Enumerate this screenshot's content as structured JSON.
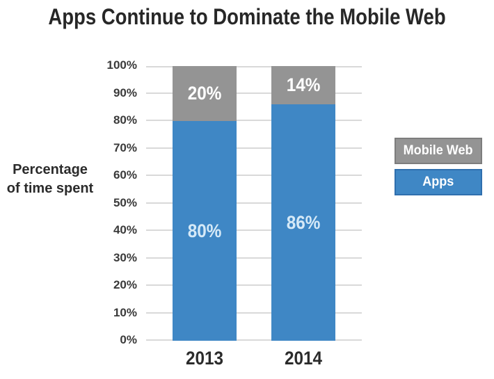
{
  "title": "Apps Continue to Dominate the Mobile Web",
  "chart_data": {
    "type": "bar",
    "stacked": true,
    "title": "Apps Continue to Dominate the Mobile Web",
    "categories": [
      "2013",
      "2014"
    ],
    "series": [
      {
        "name": "Apps",
        "color": "#3f87c5",
        "label_color": "#d5e9f7",
        "values": [
          80,
          86
        ]
      },
      {
        "name": "Mobile Web",
        "color": "#949494",
        "label_color": "#ffffff",
        "values": [
          20,
          14
        ]
      }
    ],
    "value_suffix": "%",
    "ylabel": "Percentage of time spent",
    "ylabel_lines": [
      "Percentage",
      "of time spent"
    ],
    "yticks": [
      0,
      10,
      20,
      30,
      40,
      50,
      60,
      70,
      80,
      90,
      100
    ],
    "ytick_suffix": "%",
    "ylim": [
      0,
      100
    ],
    "grid": true,
    "legend_position": "right",
    "legend_items": [
      {
        "label": "Mobile Web",
        "color": "#949494",
        "border": "#7d7d7d"
      },
      {
        "label": "Apps",
        "color": "#3f87c5",
        "border": "#2f6fae"
      }
    ]
  },
  "colors": {
    "grid": "#d9d9d9",
    "text_dark": "#2b2b2b",
    "background": "#ffffff"
  }
}
